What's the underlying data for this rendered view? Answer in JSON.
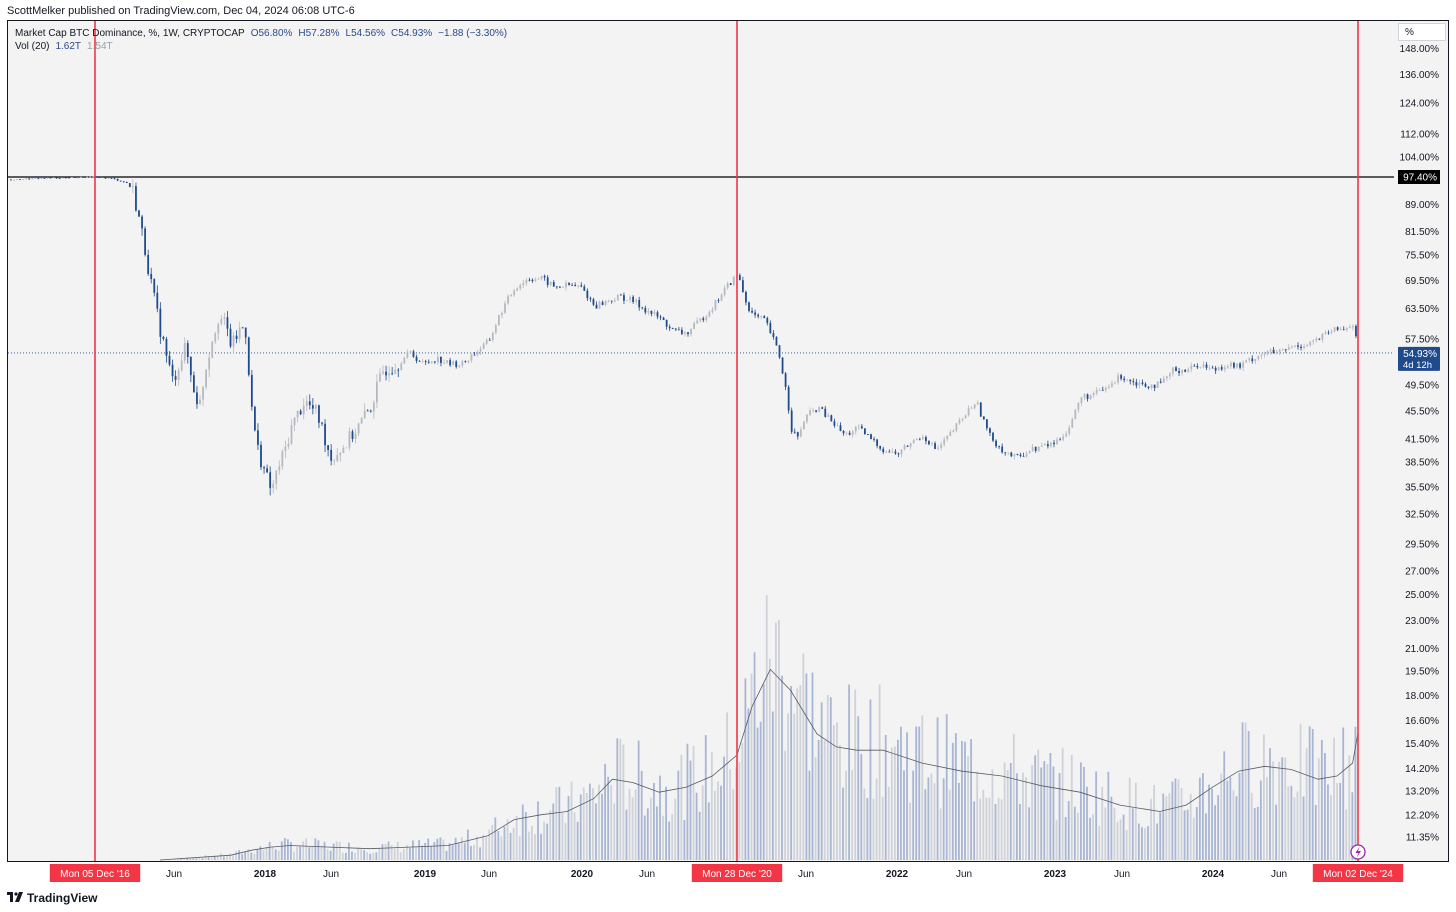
{
  "header": {
    "published": "ScottMelker published on TradingView.com, Dec 04, 2024 06:08 UTC-6",
    "symbol": "Market Cap BTC Dominance, %, 1W, CRYPTOCAP",
    "ohlc": [
      "O56.80%",
      "H57.28%",
      "L54.56%",
      "C54.93%",
      "−1.88 (−3.30%)"
    ],
    "vol_label": "Vol (20)",
    "vol_value": "1.62T",
    "vol_ma": "1.54T",
    "unit_button": "%"
  },
  "footer": {
    "brand": "TradingView",
    "logo_icon": "tradingview-logo-icon"
  },
  "colors": {
    "candle_up": "#b7b9c0",
    "candle_down": "#1f4a8c",
    "volume_down": "#a8b6d3",
    "volume_up": "#cfd2d8",
    "vline": "#f23645",
    "hline": "#000000",
    "current_price_bg": "#1f4a8c"
  },
  "chart_data": {
    "type": "line",
    "series": [
      {
        "x": [
          "2016-02-01",
          "2016-05-01",
          "2016-08-01",
          "2016-12-05",
          "2017-01-15",
          "2017-02-15",
          "2017-03-01",
          "2017-03-15",
          "2017-04-01",
          "2017-04-15",
          "2017-05-01",
          "2017-05-15",
          "2017-06-01",
          "2017-06-15",
          "2017-07-01",
          "2017-07-15",
          "2017-08-01",
          "2017-08-15",
          "2017-09-01",
          "2017-09-15",
          "2017-10-01",
          "2017-10-15",
          "2017-11-01",
          "2017-11-15",
          "2017-12-01",
          "2017-12-15",
          "2018-01-01",
          "2018-01-15",
          "2018-02-01",
          "2018-02-15",
          "2018-03-01",
          "2018-04-01",
          "2018-05-01",
          "2018-06-01",
          "2018-07-01",
          "2018-08-01",
          "2018-09-01",
          "2018-10-01",
          "2018-11-01",
          "2018-12-01",
          "2019-01-01",
          "2019-02-01",
          "2019-03-01",
          "2019-04-01",
          "2019-05-01",
          "2019-06-01",
          "2019-07-01",
          "2019-08-01",
          "2019-09-01",
          "2019-10-01",
          "2019-11-01",
          "2019-12-01",
          "2020-01-01",
          "2020-02-01",
          "2020-03-01",
          "2020-04-01",
          "2020-05-01",
          "2020-06-01",
          "2020-07-01",
          "2020-08-01",
          "2020-09-01",
          "2020-10-01",
          "2020-11-01",
          "2020-12-01",
          "2020-12-28",
          "2021-01-15",
          "2021-02-01",
          "2021-03-01",
          "2021-04-01",
          "2021-04-15",
          "2021-05-01",
          "2021-05-15",
          "2021-06-01",
          "2021-07-01",
          "2021-08-01",
          "2021-09-01",
          "2021-10-01",
          "2021-11-01",
          "2021-12-01",
          "2022-01-01",
          "2022-02-01",
          "2022-03-01",
          "2022-04-01",
          "2022-05-01",
          "2022-06-01",
          "2022-07-01",
          "2022-08-01",
          "2022-09-01",
          "2022-10-01",
          "2022-11-01",
          "2022-12-01",
          "2023-01-01",
          "2023-02-01",
          "2023-03-01",
          "2023-04-01",
          "2023-05-01",
          "2023-06-01",
          "2023-07-01",
          "2023-08-01",
          "2023-09-01",
          "2023-10-01",
          "2023-11-01",
          "2023-12-01",
          "2024-01-01",
          "2024-02-01",
          "2024-03-01",
          "2024-04-01",
          "2024-05-01",
          "2024-06-01",
          "2024-07-01",
          "2024-08-01",
          "2024-09-01",
          "2024-10-01",
          "2024-11-01",
          "2024-11-20",
          "2024-12-02"
        ],
        "values": [
          97.5,
          96.5,
          97.0,
          97.4,
          96.8,
          95.5,
          93.0,
          85.0,
          75.0,
          67.0,
          60.0,
          55.0,
          50.0,
          53.0,
          56.0,
          50.0,
          46.0,
          52.0,
          58.0,
          62.0,
          60.0,
          56.0,
          59.0,
          60.0,
          45.0,
          40.0,
          37.0,
          35.0,
          38.0,
          40.0,
          43.0,
          47.0,
          45.0,
          39.0,
          40.5,
          43.0,
          46.0,
          52.0,
          53.0,
          55.0,
          53.0,
          54.0,
          53.0,
          53.0,
          55.0,
          57.0,
          63.0,
          68.0,
          70.0,
          70.0,
          68.0,
          68.5,
          68.0,
          64.0,
          65.0,
          66.0,
          65.0,
          63.0,
          61.5,
          59.0,
          58.5,
          61.0,
          64.0,
          68.0,
          71.0,
          65.0,
          62.0,
          61.0,
          55.0,
          50.0,
          43.0,
          41.5,
          44.5,
          46.0,
          44.0,
          42.0,
          43.0,
          41.5,
          40.0,
          39.5,
          41.0,
          42.0,
          40.0,
          42.0,
          44.5,
          47.0,
          42.0,
          40.0,
          39.0,
          40.0,
          40.5,
          41.0,
          43.0,
          47.5,
          48.0,
          49.0,
          51.0,
          50.0,
          49.5,
          49.5,
          52.0,
          52.0,
          53.0,
          52.0,
          53.0,
          52.5,
          54.0,
          55.0,
          55.0,
          56.0,
          56.5,
          57.5,
          59.0,
          59.5,
          60.5,
          54.93
        ]
      },
      {
        "name": "Vol (20)",
        "x": [
          "2017-10-15",
          "2017-12-01",
          "2018-01-15",
          "2018-03-01",
          "2018-06-01",
          "2018-09-01",
          "2018-12-01",
          "2019-03-01",
          "2019-06-01",
          "2019-08-01",
          "2019-10-01",
          "2019-12-01",
          "2020-02-01",
          "2020-03-15",
          "2020-05-01",
          "2020-07-01",
          "2020-09-01",
          "2020-11-01",
          "2020-12-28",
          "2021-02-01",
          "2021-03-15",
          "2021-05-01",
          "2021-07-01",
          "2021-08-15",
          "2021-10-01",
          "2021-12-01",
          "2022-03-01",
          "2022-06-01",
          "2022-09-01",
          "2022-12-01",
          "2023-03-01",
          "2023-06-01",
          "2023-09-01",
          "2023-11-01",
          "2024-01-01",
          "2024-03-01",
          "2024-05-01",
          "2024-07-01",
          "2024-09-01",
          "2024-10-15",
          "2024-11-20",
          "2024-12-02"
        ],
        "values": [
          0.03,
          0.06,
          0.08,
          0.09,
          0.08,
          0.07,
          0.08,
          0.09,
          0.15,
          0.25,
          0.28,
          0.3,
          0.38,
          0.5,
          0.48,
          0.42,
          0.45,
          0.52,
          0.65,
          0.95,
          1.18,
          1.05,
          0.78,
          0.7,
          0.68,
          0.68,
          0.6,
          0.55,
          0.52,
          0.46,
          0.42,
          0.34,
          0.3,
          0.34,
          0.45,
          0.55,
          0.58,
          0.56,
          0.5,
          0.52,
          0.6,
          0.78
        ]
      }
    ],
    "y_ticks": [
      "148.00%",
      "136.00%",
      "124.00%",
      "112.00%",
      "104.00%",
      "97.40%",
      "89.00%",
      "81.50%",
      "75.50%",
      "69.50%",
      "63.50%",
      "57.50%",
      "54.93%",
      "49.50%",
      "45.50%",
      "41.50%",
      "38.50%",
      "35.50%",
      "32.50%",
      "29.50%",
      "27.00%",
      "25.00%",
      "23.00%",
      "21.00%",
      "19.50%",
      "18.00%",
      "16.60%",
      "15.40%",
      "14.20%",
      "13.20%",
      "12.20%",
      "11.35%"
    ],
    "x_ticks": [
      "Mon 05 Dec '16",
      "Jun",
      "2018",
      "Jun",
      "2019",
      "Jun",
      "2020",
      "Jun",
      "Mon 28 Dec '20",
      "Jun",
      "2022",
      "Jun",
      "2023",
      "Jun",
      "2024",
      "Jun",
      "Mon 02 Dec '24"
    ],
    "highlighted_dates": [
      "Mon 05 Dec '16",
      "Mon 28 Dec '20",
      "Mon 02 Dec '24"
    ],
    "horizontal_level": "97.40%",
    "current_price": "54.93%",
    "countdown": "4d 12h"
  }
}
